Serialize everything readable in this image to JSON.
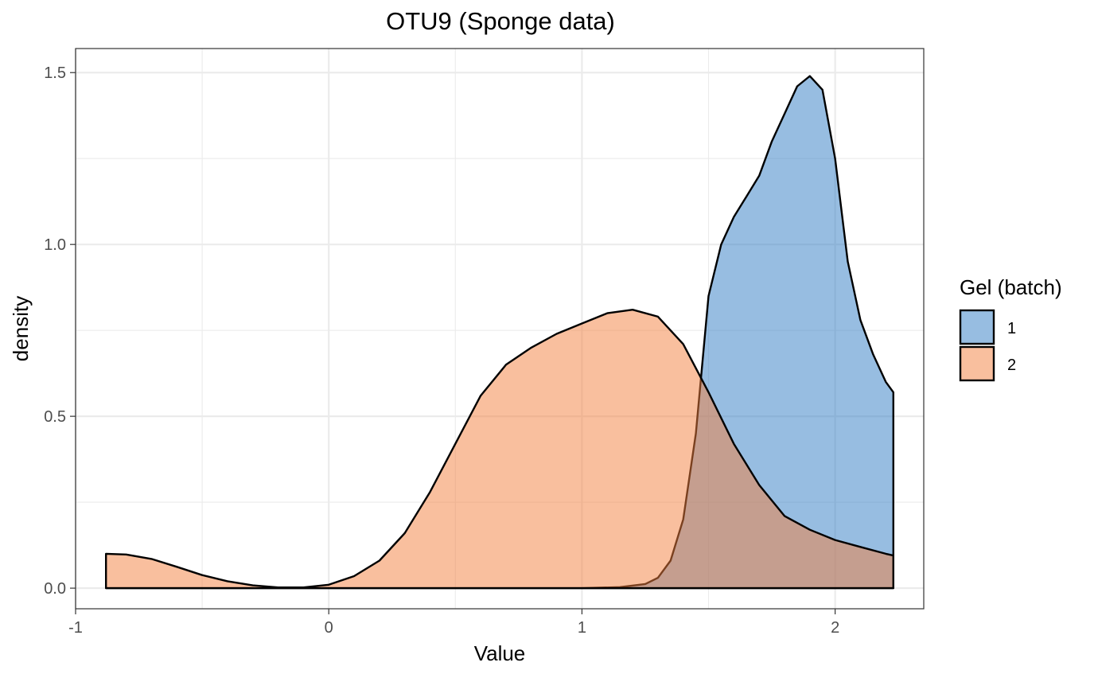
{
  "chart_data": {
    "type": "area",
    "subtype": "density",
    "title": "OTU9 (Sponge data)",
    "xlabel": "Value",
    "ylabel": "density",
    "xlim": [
      -1.0,
      2.35
    ],
    "ylim": [
      -0.06,
      1.57
    ],
    "x_ticks": [
      -1,
      0,
      1,
      2
    ],
    "x_tick_labels": [
      "-1",
      "0",
      "1",
      "2"
    ],
    "y_ticks": [
      0.0,
      0.5,
      1.0,
      1.5
    ],
    "y_tick_labels": [
      "0.0",
      "0.5",
      "1.0",
      "1.5"
    ],
    "grid": true,
    "legend": {
      "title": "Gel (batch)",
      "position": "right"
    },
    "series": [
      {
        "name": "1",
        "color": "#2F7BC4",
        "fill_opacity": 0.5,
        "x": [
          -0.88,
          1.0,
          1.15,
          1.25,
          1.3,
          1.35,
          1.4,
          1.45,
          1.5,
          1.55,
          1.6,
          1.65,
          1.7,
          1.75,
          1.8,
          1.85,
          1.9,
          1.95,
          2.0,
          2.05,
          2.1,
          2.15,
          2.2,
          2.23
        ],
        "y": [
          0.0,
          0.0,
          0.003,
          0.012,
          0.03,
          0.08,
          0.2,
          0.45,
          0.85,
          1.0,
          1.08,
          1.14,
          1.2,
          1.3,
          1.38,
          1.46,
          1.49,
          1.45,
          1.25,
          0.95,
          0.78,
          0.68,
          0.6,
          0.57
        ]
      },
      {
        "name": "2",
        "color": "#F3803E",
        "fill_opacity": 0.5,
        "x": [
          -0.88,
          -0.8,
          -0.7,
          -0.6,
          -0.5,
          -0.4,
          -0.3,
          -0.2,
          -0.1,
          0.0,
          0.1,
          0.2,
          0.3,
          0.4,
          0.5,
          0.6,
          0.7,
          0.8,
          0.9,
          1.0,
          1.1,
          1.2,
          1.3,
          1.4,
          1.5,
          1.6,
          1.7,
          1.8,
          1.9,
          2.0,
          2.1,
          2.2,
          2.23
        ],
        "y": [
          0.1,
          0.098,
          0.085,
          0.062,
          0.038,
          0.02,
          0.008,
          0.002,
          0.002,
          0.01,
          0.035,
          0.08,
          0.16,
          0.28,
          0.42,
          0.56,
          0.65,
          0.7,
          0.74,
          0.77,
          0.8,
          0.81,
          0.79,
          0.71,
          0.57,
          0.42,
          0.3,
          0.21,
          0.17,
          0.14,
          0.12,
          0.1,
          0.095
        ]
      }
    ]
  }
}
